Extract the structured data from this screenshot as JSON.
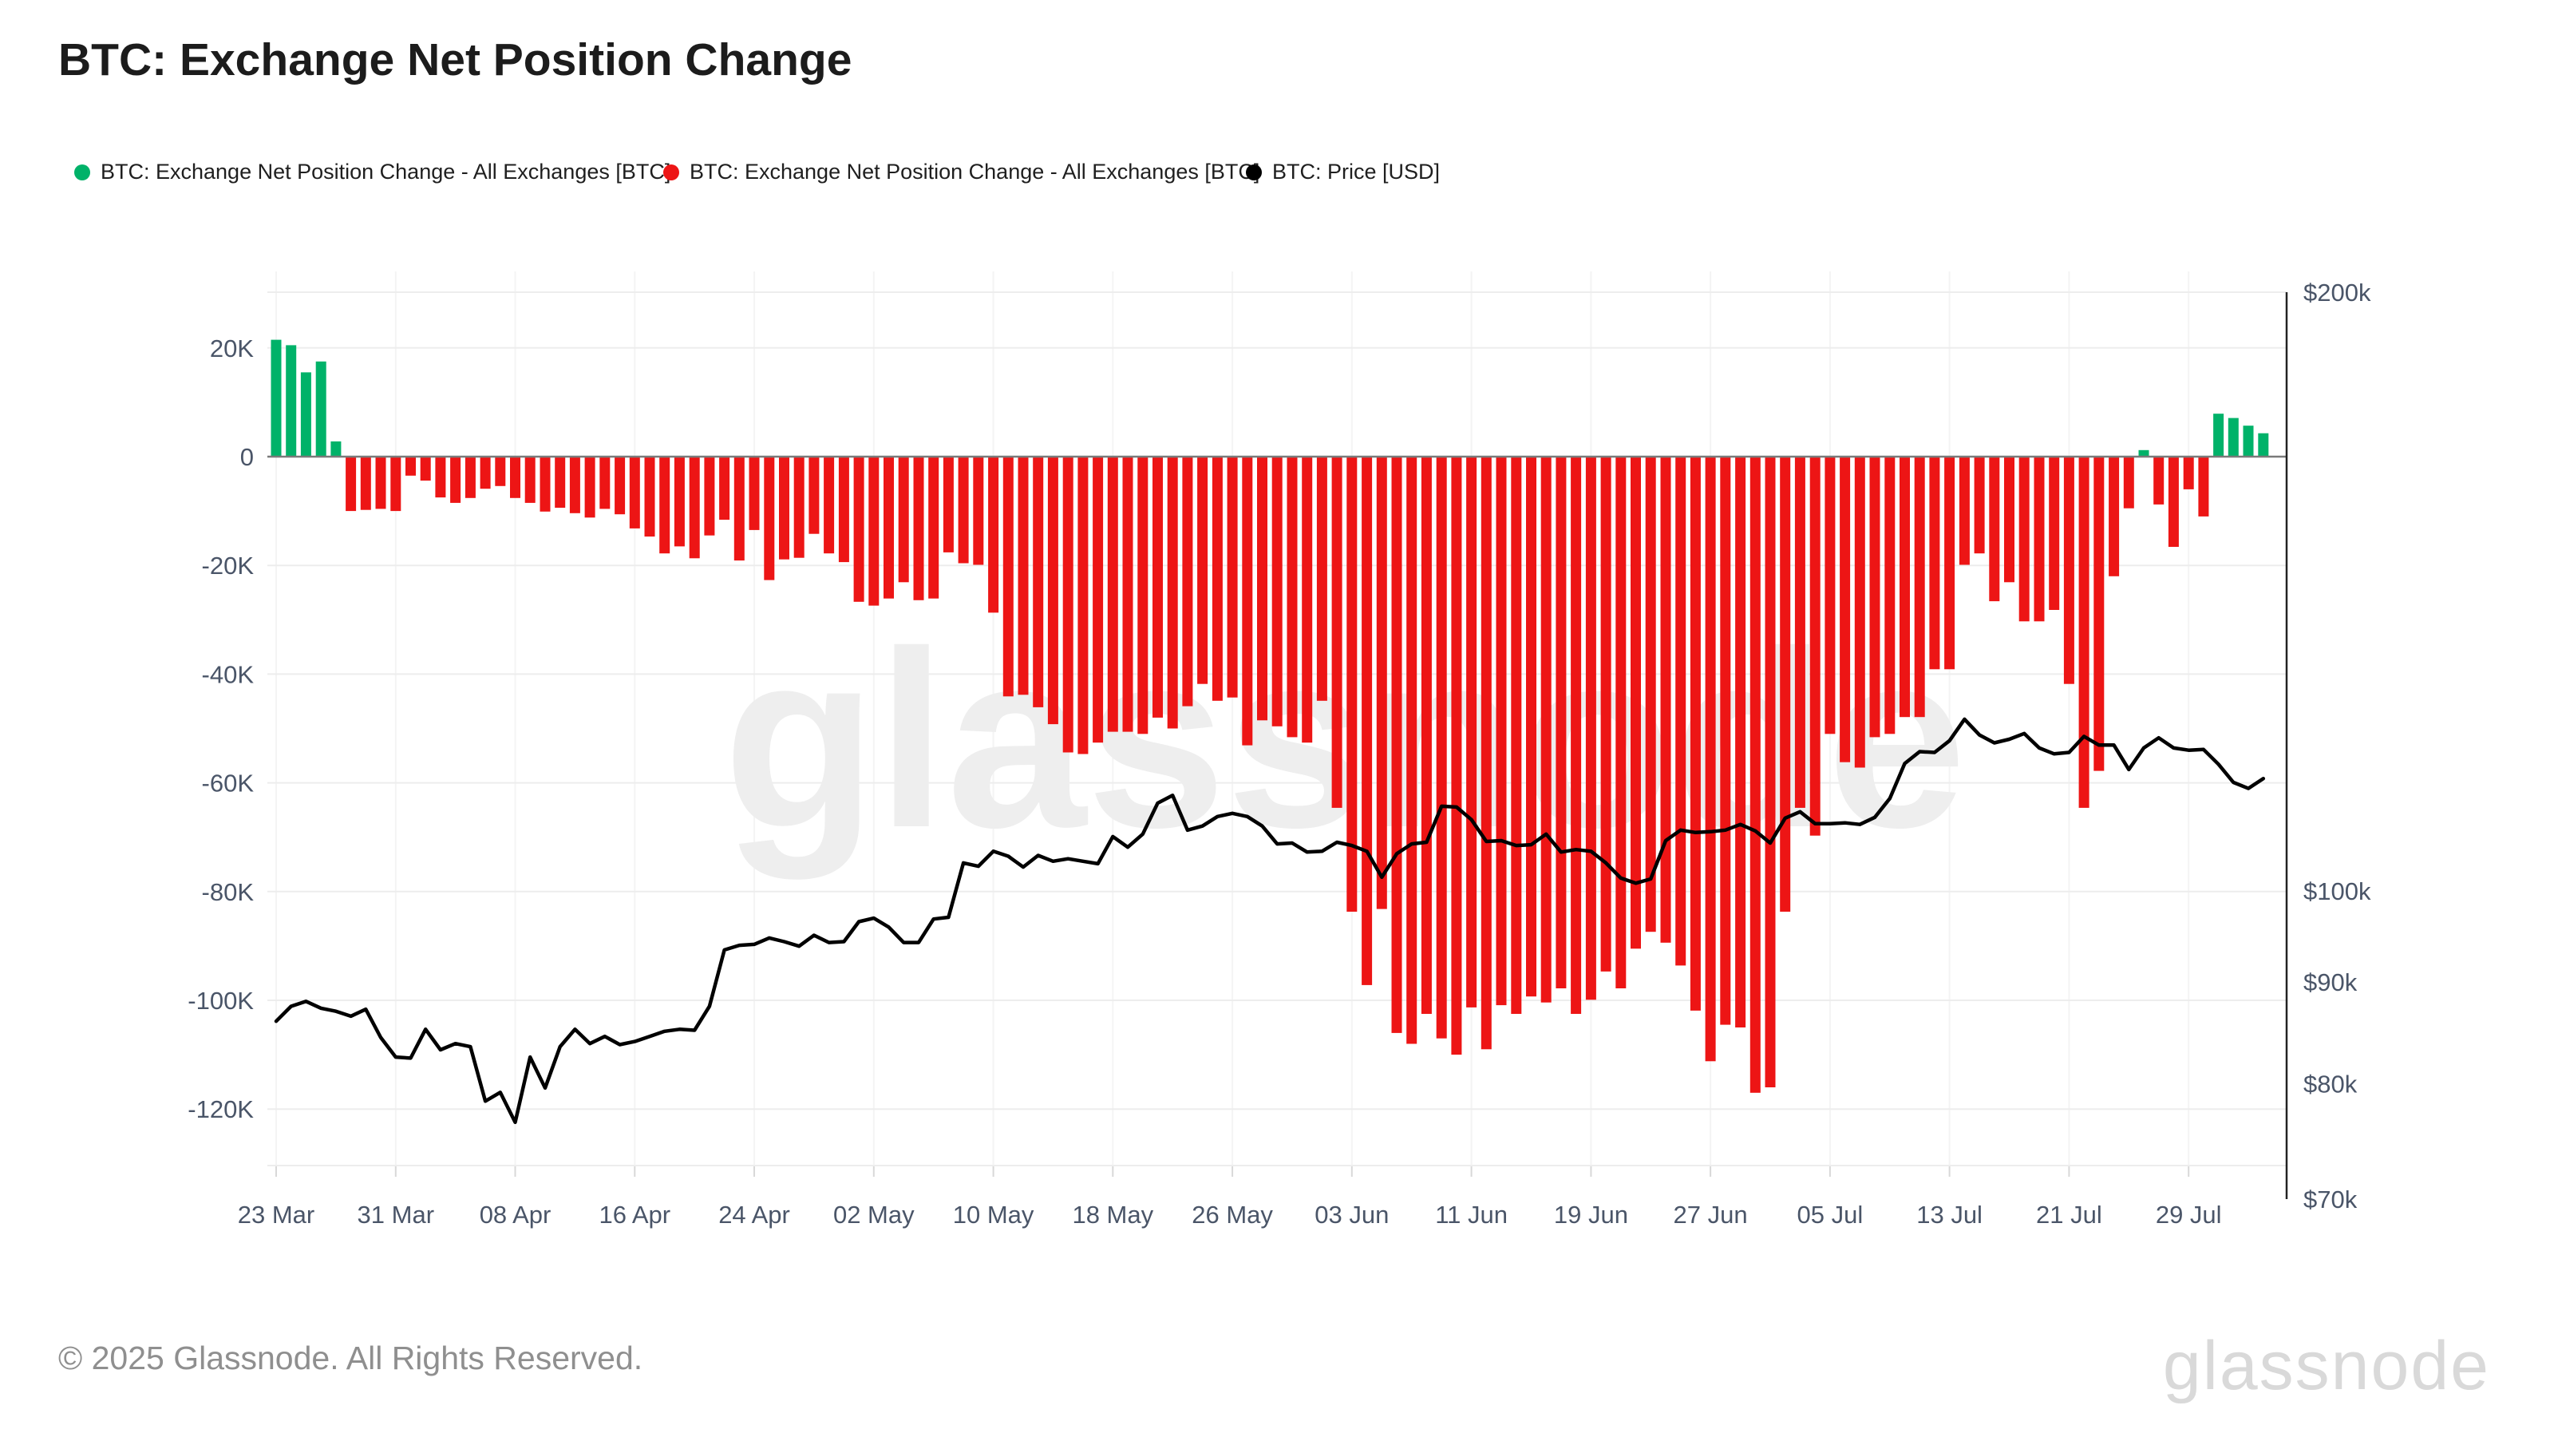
{
  "page": {
    "title": "BTC: Exchange Net Position Change"
  },
  "legend": [
    {
      "label": "BTC: Exchange Net Position Change - All Exchanges [BTC]",
      "color": "#00b269"
    },
    {
      "label": "BTC: Exchange Net Position Change - All Exchanges [BTC]",
      "color": "#ed1515"
    },
    {
      "label": "BTC: Price [USD]",
      "color": "#000000"
    }
  ],
  "watermark": "glassnode",
  "footer": {
    "copyright": "© 2025 Glassnode. All Rights Reserved.",
    "logo_text": "glassnode"
  },
  "colors": {
    "bar_positive": "#00b269",
    "bar_negative": "#ed1515",
    "price_line": "#000000",
    "zero_line": "#7a7a7a",
    "grid": "#ededed",
    "grid_vertical": "#f4f4f4",
    "axis_text": "#4a5568",
    "right_axis_line": "#222222",
    "watermark": "#eeeeee"
  },
  "chart_data": {
    "type": "bar",
    "title": "BTC: Exchange Net Position Change",
    "x": [
      "23 Mar",
      "24 Mar",
      "25 Mar",
      "26 Mar",
      "27 Mar",
      "28 Mar",
      "29 Mar",
      "30 Mar",
      "31 Mar",
      "01 Apr",
      "02 Apr",
      "03 Apr",
      "04 Apr",
      "05 Apr",
      "06 Apr",
      "07 Apr",
      "08 Apr",
      "09 Apr",
      "10 Apr",
      "11 Apr",
      "12 Apr",
      "13 Apr",
      "14 Apr",
      "15 Apr",
      "16 Apr",
      "17 Apr",
      "18 Apr",
      "19 Apr",
      "20 Apr",
      "21 Apr",
      "22 Apr",
      "23 Apr",
      "24 Apr",
      "25 Apr",
      "26 Apr",
      "27 Apr",
      "28 Apr",
      "29 Apr",
      "30 Apr",
      "01 May",
      "02 May",
      "03 May",
      "04 May",
      "05 May",
      "06 May",
      "07 May",
      "08 May",
      "09 May",
      "10 May",
      "11 May",
      "12 May",
      "13 May",
      "14 May",
      "15 May",
      "16 May",
      "17 May",
      "18 May",
      "19 May",
      "20 May",
      "21 May",
      "22 May",
      "23 May",
      "24 May",
      "25 May",
      "26 May",
      "27 May",
      "28 May",
      "29 May",
      "30 May",
      "31 May",
      "01 Jun",
      "02 Jun",
      "03 Jun",
      "04 Jun",
      "05 Jun",
      "06 Jun",
      "07 Jun",
      "08 Jun",
      "09 Jun",
      "10 Jun",
      "11 Jun",
      "12 Jun",
      "13 Jun",
      "14 Jun",
      "15 Jun",
      "16 Jun",
      "17 Jun",
      "18 Jun",
      "19 Jun",
      "20 Jun",
      "21 Jun",
      "22 Jun",
      "23 Jun",
      "24 Jun",
      "25 Jun",
      "26 Jun",
      "27 Jun",
      "28 Jun",
      "29 Jun",
      "30 Jun",
      "01 Jul",
      "02 Jul",
      "03 Jul",
      "04 Jul",
      "05 Jul",
      "06 Jul",
      "07 Jul",
      "08 Jul",
      "09 Jul",
      "10 Jul",
      "11 Jul",
      "12 Jul",
      "13 Jul",
      "14 Jul",
      "15 Jul",
      "16 Jul",
      "17 Jul",
      "18 Jul",
      "19 Jul",
      "20 Jul",
      "21 Jul",
      "22 Jul",
      "23 Jul",
      "24 Jul",
      "25 Jul",
      "26 Jul",
      "27 Jul",
      "28 Jul",
      "29 Jul",
      "30 Jul",
      "31 Jul",
      "01 Aug",
      "02 Aug",
      "03 Aug"
    ],
    "series": [
      {
        "name": "BTC: Exchange Net Position Change - All Exchanges [BTC]",
        "type": "bar",
        "unit": "K BTC",
        "axis": "left",
        "positive_color": "#00b269",
        "negative_color": "#ed1515",
        "values": [
          21.5,
          20.5,
          15.5,
          17.5,
          2.8,
          -10.0,
          -9.8,
          -9.6,
          -10.0,
          -3.5,
          -4.4,
          -7.5,
          -8.5,
          -7.6,
          -5.9,
          -5.4,
          -7.6,
          -8.5,
          -10.1,
          -9.4,
          -10.4,
          -11.2,
          -9.6,
          -10.6,
          -13.2,
          -14.7,
          -17.8,
          -16.5,
          -18.7,
          -14.5,
          -11.6,
          -19.1,
          -13.5,
          -22.7,
          -18.9,
          -18.6,
          -14.2,
          -17.8,
          -19.4,
          -26.7,
          -27.4,
          -26.1,
          -23.1,
          -26.4,
          -26.1,
          -17.6,
          -19.6,
          -19.9,
          -28.7,
          -44.1,
          -43.8,
          -46.1,
          -49.2,
          -54.4,
          -54.7,
          -52.6,
          -50.6,
          -50.6,
          -51.0,
          -48.0,
          -50.0,
          -45.9,
          -41.8,
          -44.9,
          -44.3,
          -53.1,
          -48.5,
          -49.6,
          -51.6,
          -52.6,
          -44.9,
          -64.6,
          -83.7,
          -97.2,
          -83.2,
          -106.0,
          -108.0,
          -102.5,
          -107.0,
          -110.0,
          -101.3,
          -109.0,
          -100.9,
          -102.5,
          -99.3,
          -100.4,
          -97.8,
          -102.5,
          -99.9,
          -94.7,
          -97.8,
          -90.5,
          -87.4,
          -89.4,
          -93.6,
          -101.9,
          -111.2,
          -104.5,
          -105.0,
          -117.0,
          -116.0,
          -83.7,
          -64.6,
          -69.7,
          -51.0,
          -56.2,
          -57.2,
          -51.6,
          -51.0,
          -47.9,
          -47.9,
          -39.1,
          -39.1,
          -19.9,
          -17.8,
          -26.6,
          -23.1,
          -30.3,
          -30.3,
          -28.2,
          -41.8,
          -64.6,
          -57.8,
          -22.0,
          -9.5,
          1.2,
          -8.8,
          -16.6,
          -6.0,
          -11.0,
          7.9,
          7.1,
          5.7,
          4.3
        ]
      },
      {
        "name": "BTC: Price [USD]",
        "type": "line",
        "unit": "USD thousands",
        "axis": "right",
        "color": "#000000",
        "values": [
          86.0,
          87.5,
          88.0,
          87.3,
          87.0,
          86.5,
          87.2,
          84.4,
          82.5,
          82.4,
          85.2,
          83.2,
          83.8,
          83.5,
          78.4,
          79.2,
          76.5,
          82.5,
          79.6,
          83.5,
          85.2,
          83.8,
          84.5,
          83.7,
          84.0,
          84.5,
          85.0,
          85.2,
          85.1,
          87.5,
          93.4,
          93.9,
          94.0,
          94.7,
          94.3,
          93.8,
          95.0,
          94.2,
          94.3,
          96.5,
          96.9,
          95.9,
          94.2,
          94.2,
          96.8,
          97.0,
          103.3,
          102.9,
          104.7,
          104.1,
          102.8,
          104.2,
          103.5,
          103.8,
          103.5,
          103.2,
          106.5,
          105.2,
          106.8,
          110.7,
          111.7,
          107.3,
          107.8,
          109.0,
          109.4,
          109.0,
          107.8,
          105.6,
          105.7,
          104.6,
          104.7,
          105.8,
          105.4,
          104.7,
          101.6,
          104.4,
          105.6,
          105.8,
          110.3,
          110.2,
          108.6,
          105.9,
          106.0,
          105.4,
          105.5,
          106.8,
          104.6,
          104.9,
          104.7,
          103.3,
          101.5,
          100.9,
          101.4,
          106.0,
          107.3,
          107.0,
          107.1,
          107.3,
          108.0,
          107.2,
          105.7,
          108.8,
          109.6,
          108.1,
          108.1,
          108.2,
          108.0,
          108.9,
          111.3,
          115.9,
          117.5,
          117.4,
          119.0,
          122.0,
          119.8,
          118.7,
          119.2,
          120.0,
          118.0,
          117.2,
          117.4,
          119.6,
          118.4,
          118.4,
          115.1,
          118.0,
          119.4,
          118.0,
          117.7,
          117.8,
          115.8,
          113.4,
          112.6,
          113.9
        ]
      }
    ],
    "left_axis": {
      "tick_labels": [
        "20K",
        "0",
        "-20K",
        "-40K",
        "-60K",
        "-80K",
        "-100K",
        "-120K"
      ],
      "tick_values": [
        20,
        0,
        -20,
        -40,
        -60,
        -80,
        -100,
        -120
      ],
      "unit": "BTC"
    },
    "right_axis": {
      "tick_labels": [
        "$200k",
        "$100k",
        "$90k",
        "$80k",
        "$70k"
      ],
      "tick_values_k": [
        200,
        100,
        90,
        80,
        70
      ],
      "scale": "log"
    },
    "x_ticks": [
      {
        "i": 0,
        "label": "23 Mar"
      },
      {
        "i": 8,
        "label": "31 Mar"
      },
      {
        "i": 16,
        "label": "08 Apr"
      },
      {
        "i": 24,
        "label": "16 Apr"
      },
      {
        "i": 32,
        "label": "24 Apr"
      },
      {
        "i": 40,
        "label": "02 May"
      },
      {
        "i": 48,
        "label": "10 May"
      },
      {
        "i": 56,
        "label": "18 May"
      },
      {
        "i": 64,
        "label": "26 May"
      },
      {
        "i": 72,
        "label": "03 Jun"
      },
      {
        "i": 80,
        "label": "11 Jun"
      },
      {
        "i": 88,
        "label": "19 Jun"
      },
      {
        "i": 96,
        "label": "27 Jun"
      },
      {
        "i": 104,
        "label": "05 Jul"
      },
      {
        "i": 112,
        "label": "13 Jul"
      },
      {
        "i": 120,
        "label": "21 Jul"
      },
      {
        "i": 128,
        "label": "29 Jul"
      }
    ],
    "grid": "on",
    "legend_position": "top-left"
  }
}
